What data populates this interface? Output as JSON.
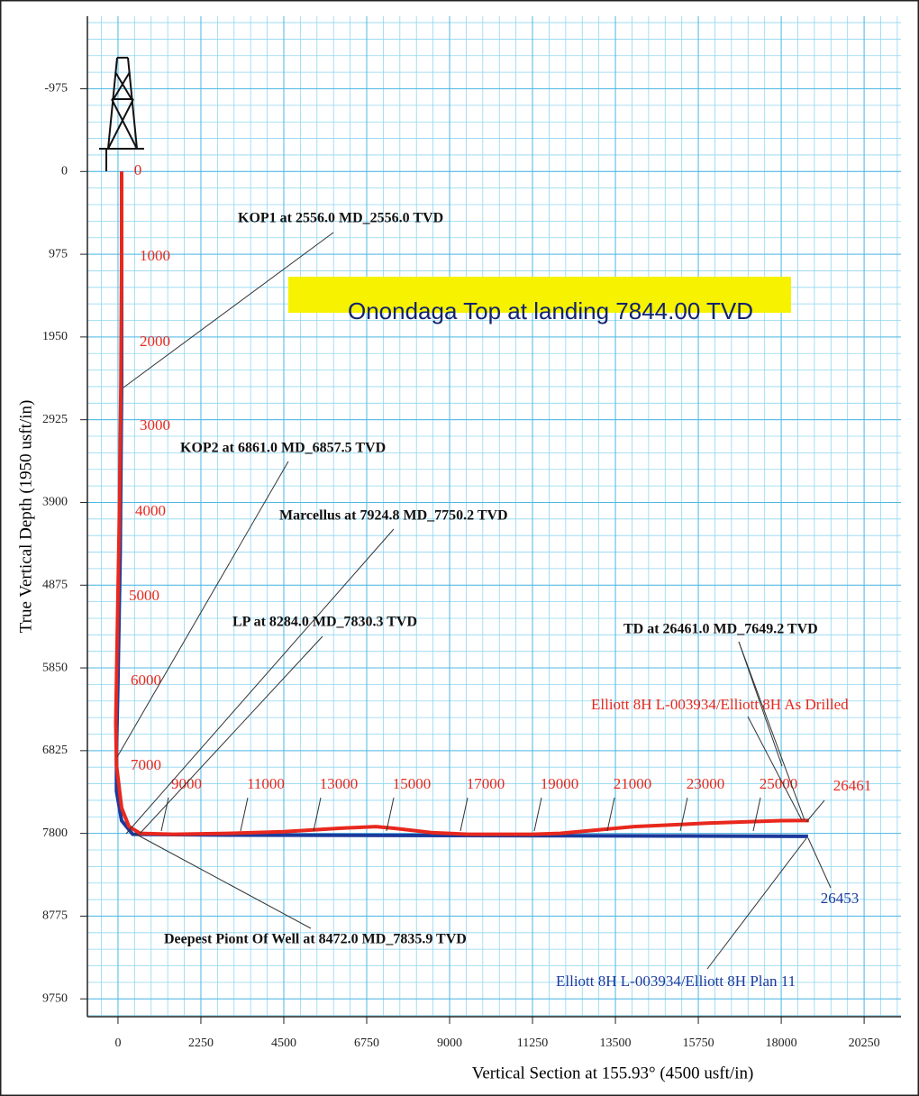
{
  "chart_data": {
    "type": "line",
    "x_label": "Vertical Section at 155.93° (4500 usft/in)",
    "y_label": "True Vertical Depth (1950 usft/in)",
    "xlim": [
      -830,
      21250
    ],
    "ylim": [
      -1830,
      9960
    ],
    "y_inverted": true,
    "grid": true,
    "xticks": [
      0,
      2250,
      4500,
      6750,
      9000,
      11250,
      13500,
      15750,
      18000,
      20250
    ],
    "yticks": [
      -975,
      0,
      975,
      1950,
      2925,
      3900,
      4875,
      5850,
      6825,
      7800,
      8775,
      9750
    ],
    "series": [
      {
        "name": "Elliott 8H L-003934/Elliott 8H As Drilled",
        "color": "#e8281e",
        "x": [
          100,
          100,
          80,
          40,
          -20,
          -60,
          -40,
          100,
          300,
          600,
          1500,
          3000,
          4500,
          6000,
          7000,
          7500,
          8500,
          9500,
          11250,
          12000,
          13000,
          14000,
          16000,
          18000,
          18750
        ],
        "values": [
          0,
          1000,
          2500,
          4000,
          5500,
          6500,
          7000,
          7500,
          7720,
          7800,
          7810,
          7800,
          7780,
          7740,
          7720,
          7740,
          7790,
          7810,
          7810,
          7800,
          7760,
          7720,
          7680,
          7650,
          7649
        ]
      },
      {
        "name": "Elliott 8H L-003934/Elliott 8H Plan 11",
        "color": "#1c3a9c",
        "x": [
          100,
          100,
          60,
          0,
          -40,
          -40,
          100,
          400,
          3000,
          9000,
          15000,
          18730
        ],
        "values": [
          0,
          2500,
          4500,
          6000,
          6800,
          7300,
          7650,
          7810,
          7820,
          7825,
          7830,
          7835
        ]
      }
    ],
    "md_labels": [
      0,
      1000,
      2000,
      3000,
      4000,
      5000,
      6000,
      7000,
      9000,
      11000,
      13000,
      15000,
      17000,
      19000,
      21000,
      23000,
      25000,
      26461
    ],
    "plan_td_label": 26453,
    "annotations": [
      "KOP1 at 2556.0 MD_2556.0 TVD",
      "KOP2 at 6861.0 MD_6857.5 TVD",
      "Marcellus at 7924.8 MD_7750.2 TVD",
      "LP at 8284.0 MD_7830.3 TVD",
      "TD at 26461.0 MD_7649.2 TVD",
      "Deepest Piont Of Well at 8472.0 MD_7835.9 TVD"
    ],
    "highlight": "Onondaga Top at landing 7844.00 TVD"
  }
}
